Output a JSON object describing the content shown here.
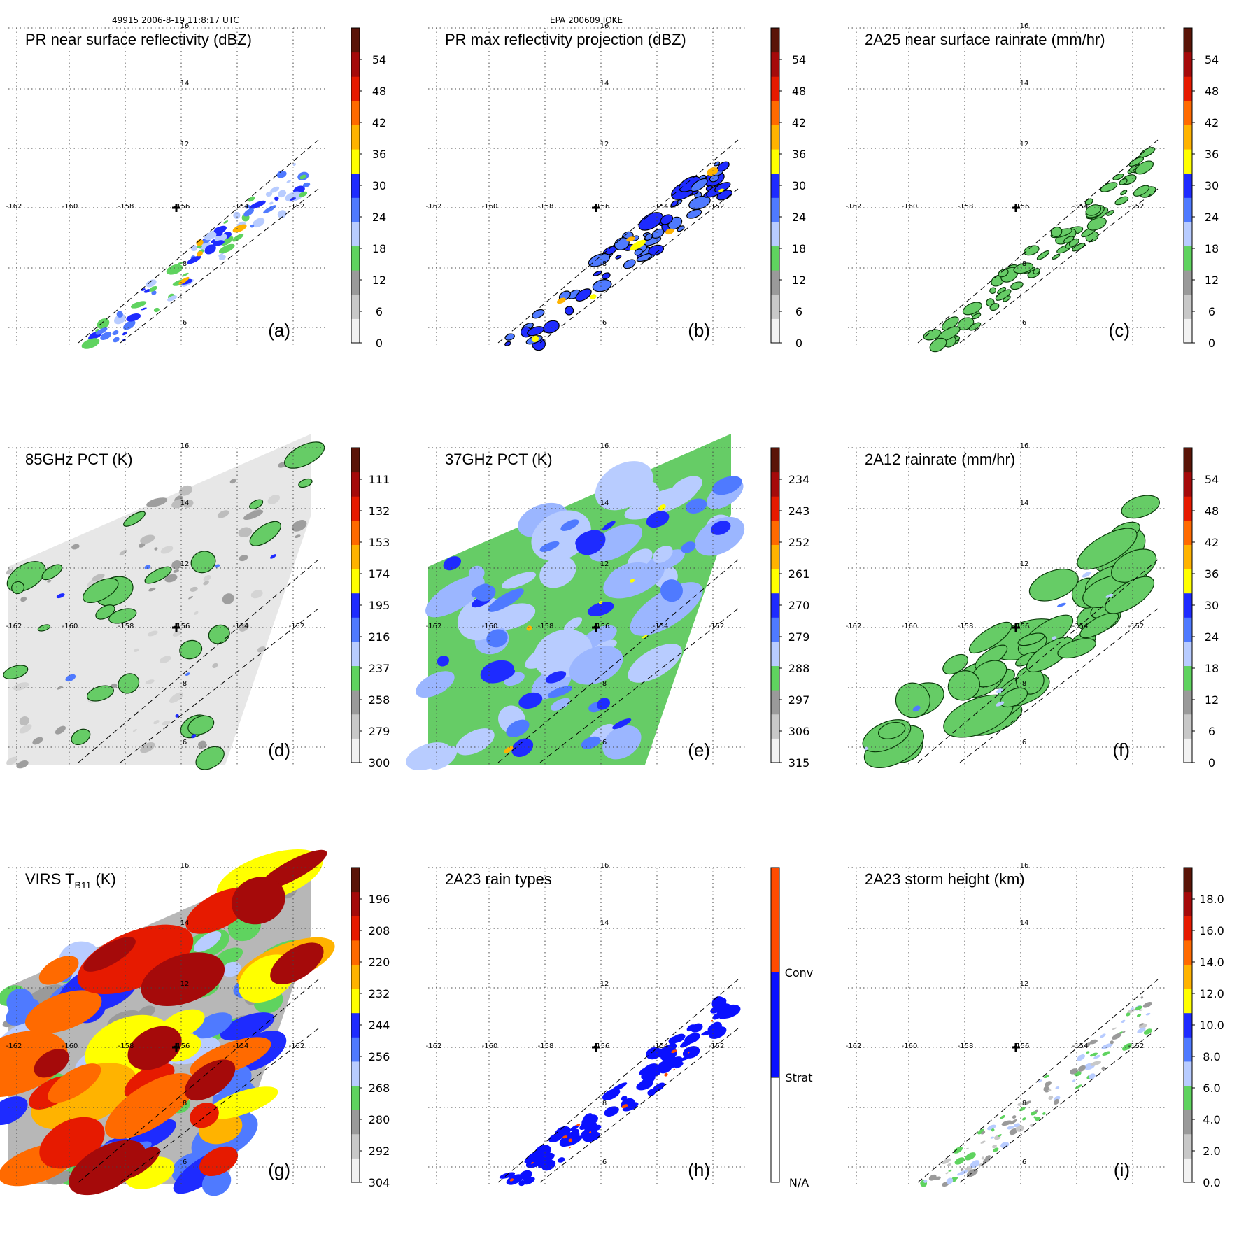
{
  "header": {
    "orbit_time": "49915 2006-8-19 11:8:17 UTC",
    "storm": "EPA 200609 IOKE"
  },
  "colors": {
    "scale": [
      "#f2f2f2",
      "#c8c8c8",
      "#9a9a9a",
      "#5fd35f",
      "#b8ccff",
      "#4f7aff",
      "#1e2bff",
      "#ffff00",
      "#ffb300",
      "#ff6a00",
      "#e61a00",
      "#a50a0a",
      "#5a1408"
    ],
    "conv": "#ff4b00",
    "strat": "#0a10ff",
    "land_green": "#66cc66",
    "gray_bg": "#e7e7e7"
  },
  "map": {
    "lon_labels": [
      "-162",
      "-160",
      "-158",
      "-156",
      "-154",
      "-152"
    ],
    "lat_labels": [
      "16",
      "14",
      "12",
      "8",
      "6"
    ],
    "center_marker": "storm-center-cross"
  },
  "panels": [
    {
      "id": "a",
      "title": "PR near surface reflectivity (dBZ)",
      "tag": "(a)",
      "ticks": [
        "0",
        "6",
        "12",
        "18",
        "24",
        "30",
        "36",
        "42",
        "48",
        "54"
      ],
      "kind": "pr_swath"
    },
    {
      "id": "b",
      "title": "PR max reflectivity projection (dBZ)",
      "tag": "(b)",
      "ticks": [
        "0",
        "6",
        "12",
        "18",
        "24",
        "30",
        "36",
        "42",
        "48",
        "54"
      ],
      "kind": "pr_max"
    },
    {
      "id": "c",
      "title": "2A25 near surface rainrate (mm/hr)",
      "tag": "(c)",
      "ticks": [
        "0",
        "6",
        "12",
        "18",
        "24",
        "30",
        "36",
        "42",
        "48",
        "54"
      ],
      "kind": "pr_rain"
    },
    {
      "id": "d",
      "title": "85GHz PCT (K)",
      "tag": "(d)",
      "ticks": [
        "300",
        "279",
        "258",
        "237",
        "216",
        "195",
        "174",
        "153",
        "132",
        "111"
      ],
      "kind": "tmi85"
    },
    {
      "id": "e",
      "title": "37GHz PCT (K)",
      "tag": "(e)",
      "ticks": [
        "315",
        "306",
        "297",
        "288",
        "279",
        "270",
        "261",
        "252",
        "243",
        "234"
      ],
      "kind": "tmi37"
    },
    {
      "id": "f",
      "title": "2A12 rainrate (mm/hr)",
      "tag": "(f)",
      "ticks": [
        "0",
        "6",
        "12",
        "18",
        "24",
        "30",
        "36",
        "42",
        "48",
        "54"
      ],
      "kind": "tmi_rain"
    },
    {
      "id": "g",
      "title": "VIRS T",
      "title_sub": "B11",
      "title_tail": " (K)",
      "tag": "(g)",
      "ticks": [
        "304",
        "292",
        "280",
        "268",
        "256",
        "244",
        "232",
        "220",
        "208",
        "196"
      ],
      "kind": "virs"
    },
    {
      "id": "h",
      "title": "2A23 rain types",
      "tag": "(h)",
      "ticks": [
        "N/A",
        "Strat",
        "Conv"
      ],
      "kind": "raintype"
    },
    {
      "id": "i",
      "title": "2A23 storm height (km)",
      "tag": "(i)",
      "ticks": [
        "0.0",
        "2.0",
        "4.0",
        "6.0",
        "8.0",
        "10.0",
        "12.0",
        "14.0",
        "16.0",
        "18.0"
      ],
      "kind": "height"
    }
  ]
}
